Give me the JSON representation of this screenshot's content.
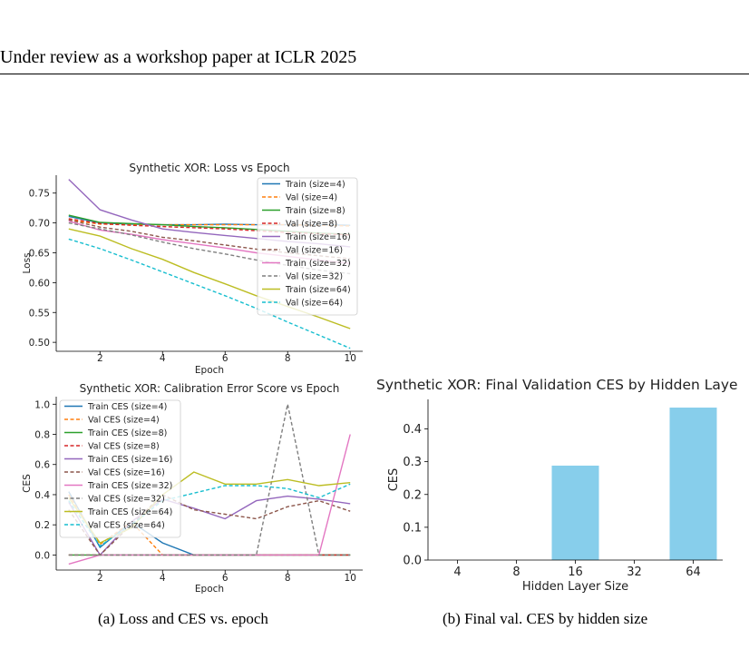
{
  "page": {
    "header": "Under review as a workshop paper at ICLR 2025",
    "caption_a": "(a)  Loss and CES vs. epoch",
    "caption_b": "(b)  Final val. CES by hidden size"
  },
  "colors": {
    "c4": "#1f77b4",
    "c8": "#2ca02c",
    "c16": "#9467bd",
    "c32": "#e377c2",
    "c64": "#bcbd22",
    "v4": "#ff7f0e",
    "v8": "#d62728",
    "v16": "#8c564b",
    "v32": "#7f7f7f",
    "v64": "#17becf",
    "bar": "#87ceeb"
  },
  "chart_data": [
    {
      "type": "line",
      "title": "Synthetic XOR: Loss vs Epoch",
      "xlabel": "Epoch",
      "ylabel": "Loss",
      "xlim": [
        0.6,
        10.4
      ],
      "ylim": [
        0.485,
        0.78
      ],
      "xticks": [
        2,
        4,
        6,
        8,
        10
      ],
      "yticks": [
        0.5,
        0.55,
        0.6,
        0.65,
        0.7,
        0.75
      ],
      "ytick_labels": [
        "0.50",
        "0.55",
        "0.60",
        "0.65",
        "0.70",
        "0.75"
      ],
      "legend": "top-right",
      "x": [
        1,
        2,
        3,
        4,
        5,
        6,
        7,
        8,
        9,
        10
      ],
      "series": [
        {
          "name": "Train (size=4)",
          "color": "c4",
          "dash": false,
          "values": [
            0.711,
            0.7,
            0.698,
            0.697,
            0.697,
            0.698,
            0.697,
            0.697,
            0.697,
            0.696
          ]
        },
        {
          "name": "Val (size=4)",
          "color": "v4",
          "dash": true,
          "values": [
            0.705,
            0.698,
            0.697,
            0.697,
            0.697,
            0.697,
            0.697,
            0.697,
            0.696,
            0.695
          ]
        },
        {
          "name": "Train (size=8)",
          "color": "c8",
          "dash": false,
          "values": [
            0.713,
            0.701,
            0.699,
            0.697,
            0.694,
            0.692,
            0.689,
            0.686,
            0.683,
            0.681
          ]
        },
        {
          "name": "Val (size=8)",
          "color": "v8",
          "dash": true,
          "values": [
            0.707,
            0.699,
            0.696,
            0.694,
            0.692,
            0.69,
            0.687,
            0.684,
            0.682,
            0.68
          ]
        },
        {
          "name": "Train (size=16)",
          "color": "c16",
          "dash": false,
          "values": [
            0.773,
            0.722,
            0.705,
            0.69,
            0.684,
            0.679,
            0.674,
            0.669,
            0.665,
            0.66
          ]
        },
        {
          "name": "Val (size=16)",
          "color": "v16",
          "dash": true,
          "values": [
            0.705,
            0.693,
            0.686,
            0.676,
            0.67,
            0.663,
            0.656,
            0.65,
            0.645,
            0.64
          ]
        },
        {
          "name": "Train (size=32)",
          "color": "c32",
          "dash": false,
          "values": [
            0.703,
            0.688,
            0.681,
            0.672,
            0.665,
            0.658,
            0.65,
            0.644,
            0.638,
            0.632
          ]
        },
        {
          "name": "Val (size=32)",
          "color": "v32",
          "dash": true,
          "values": [
            0.7,
            0.69,
            0.68,
            0.668,
            0.657,
            0.648,
            0.638,
            0.629,
            0.621,
            0.615
          ]
        },
        {
          "name": "Train (size=64)",
          "color": "c64",
          "dash": false,
          "values": [
            0.69,
            0.678,
            0.657,
            0.639,
            0.617,
            0.598,
            0.578,
            0.56,
            0.542,
            0.523
          ]
        },
        {
          "name": "Val (size=64)",
          "color": "v64",
          "dash": true,
          "values": [
            0.673,
            0.657,
            0.638,
            0.618,
            0.598,
            0.578,
            0.557,
            0.534,
            0.512,
            0.49
          ]
        }
      ]
    },
    {
      "type": "line",
      "title": "Synthetic XOR: Calibration Error Score vs Epoch",
      "xlabel": "Epoch",
      "ylabel": "CES",
      "xlim": [
        0.6,
        10.4
      ],
      "ylim": [
        -0.1,
        1.05
      ],
      "xticks": [
        2,
        4,
        6,
        8,
        10
      ],
      "yticks": [
        0.0,
        0.2,
        0.4,
        0.6,
        0.8,
        1.0
      ],
      "ytick_labels": [
        "0.0",
        "0.2",
        "0.4",
        "0.6",
        "0.8",
        "1.0"
      ],
      "legend": "top-left",
      "x": [
        1,
        2,
        3,
        4,
        5,
        6,
        7,
        8,
        9,
        10
      ],
      "series": [
        {
          "name": "Train CES (size=4)",
          "color": "c4",
          "dash": false,
          "values": [
            0.42,
            0.05,
            0.22,
            0.08,
            0.0,
            0.0,
            0.0,
            0.0,
            0.0,
            0.0
          ]
        },
        {
          "name": "Val CES (size=4)",
          "color": "v4",
          "dash": true,
          "values": [
            0.4,
            0.07,
            0.22,
            0.0,
            0.0,
            0.0,
            0.0,
            0.0,
            0.0,
            0.0
          ]
        },
        {
          "name": "Train CES (size=8)",
          "color": "c8",
          "dash": false,
          "values": [
            0.0,
            0.0,
            0.0,
            0.0,
            0.0,
            0.0,
            0.0,
            0.0,
            0.0,
            0.0
          ]
        },
        {
          "name": "Val CES (size=8)",
          "color": "v8",
          "dash": true,
          "values": [
            0.0,
            0.0,
            0.0,
            0.0,
            0.0,
            0.0,
            0.0,
            0.0,
            0.0,
            0.0
          ]
        },
        {
          "name": "Train CES (size=16)",
          "color": "c16",
          "dash": false,
          "values": [
            0.35,
            0.0,
            0.22,
            0.37,
            0.31,
            0.24,
            0.36,
            0.39,
            0.37,
            0.34
          ]
        },
        {
          "name": "Val CES (size=16)",
          "color": "v16",
          "dash": true,
          "values": [
            0.3,
            0.0,
            0.2,
            0.4,
            0.3,
            0.27,
            0.24,
            0.32,
            0.36,
            0.29
          ]
        },
        {
          "name": "Train CES (size=32)",
          "color": "c32",
          "dash": false,
          "values": [
            -0.06,
            0.0,
            0.0,
            0.0,
            0.0,
            0.0,
            0.0,
            0.0,
            0.0,
            0.8
          ]
        },
        {
          "name": "Val CES (size=32)",
          "color": "v32",
          "dash": true,
          "values": [
            0.0,
            0.0,
            0.0,
            0.0,
            0.0,
            0.0,
            0.0,
            1.0,
            0.0,
            0.0
          ]
        },
        {
          "name": "Train CES (size=64)",
          "color": "c64",
          "dash": false,
          "values": [
            0.38,
            0.08,
            0.18,
            0.4,
            0.55,
            0.47,
            0.47,
            0.5,
            0.46,
            0.48
          ]
        },
        {
          "name": "Val CES (size=64)",
          "color": "v64",
          "dash": true,
          "values": [
            0.36,
            0.06,
            0.2,
            0.36,
            0.41,
            0.46,
            0.46,
            0.44,
            0.38,
            0.47
          ]
        }
      ]
    },
    {
      "type": "bar",
      "title": "Synthetic XOR: Final Validation CES by Hidden Laye",
      "xlabel": "Hidden Layer Size",
      "ylabel": "CES",
      "categories": [
        "4",
        "8",
        "16",
        "32",
        "64"
      ],
      "values": [
        0.0,
        0.0,
        0.288,
        0.0,
        0.465
      ],
      "ylim": [
        0,
        0.49
      ],
      "yticks": [
        0.0,
        0.1,
        0.2,
        0.3,
        0.4
      ],
      "ytick_labels": [
        "0.0",
        "0.1",
        "0.2",
        "0.3",
        "0.4"
      ],
      "color": "bar"
    }
  ]
}
